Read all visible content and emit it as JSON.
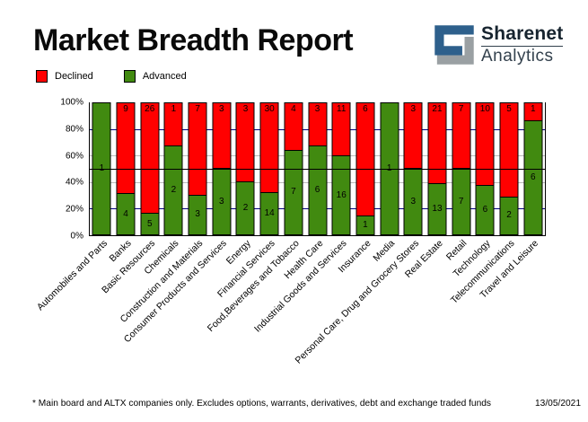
{
  "header": {
    "title": "Market Breadth Report",
    "logo": {
      "line1": "Sharenet",
      "line2": "Analytics"
    }
  },
  "legend": {
    "items": [
      {
        "label": "Declined",
        "color": "#ff0000"
      },
      {
        "label": "Advanced",
        "color": "#418a10"
      }
    ]
  },
  "colors": {
    "declined": "#ff0000",
    "advanced": "#418a10",
    "grid_major": "#000080",
    "grid_minor": "#bbbbbb",
    "reference_line": "#000000",
    "logo_blue": "#2e608c",
    "logo_gray": "#9aa0a3"
  },
  "chart_data": {
    "type": "bar",
    "stacked": true,
    "normalized_to": "100%",
    "categories": [
      "Automobiles and Parts",
      "Banks",
      "Basic Resources",
      "Chemicals",
      "Construction and Materials",
      "Consumer Products and Services",
      "Energy",
      "Financial Services",
      "Food,Beverages and Tobacco",
      "Health Care",
      "Industrial Goods and Services",
      "Insurance",
      "Media",
      "Personal Care, Drug and Grocery Stores",
      "Real Estate",
      "Retail",
      "Technology",
      "Telecommunications",
      "Travel and Leisure"
    ],
    "series": [
      {
        "name": "Declined",
        "values": [
          0,
          9,
          26,
          1,
          7,
          3,
          3,
          30,
          4,
          3,
          11,
          6,
          0,
          3,
          21,
          7,
          10,
          5,
          1
        ]
      },
      {
        "name": "Advanced",
        "values": [
          1,
          4,
          5,
          2,
          3,
          3,
          2,
          14,
          7,
          6,
          16,
          1,
          1,
          3,
          13,
          7,
          6,
          2,
          6
        ]
      }
    ],
    "y_ticks": [
      "100%",
      "80%",
      "60%",
      "40%",
      "20%",
      "0%"
    ],
    "ylim": [
      0,
      100
    ],
    "gridlines": [
      {
        "value": 80,
        "color": "#000080"
      },
      {
        "value": 60,
        "color": "#bbbbbb"
      },
      {
        "value": 40,
        "color": "#bbbbbb"
      },
      {
        "value": 20,
        "color": "#000080"
      }
    ],
    "reference_line": 50,
    "legend_position": "top-left"
  },
  "footer": {
    "note": "* Main board and ALTX companies only. Excludes options, warrants, derivatives, debt and exchange traded funds",
    "date": "13/05/2021"
  }
}
